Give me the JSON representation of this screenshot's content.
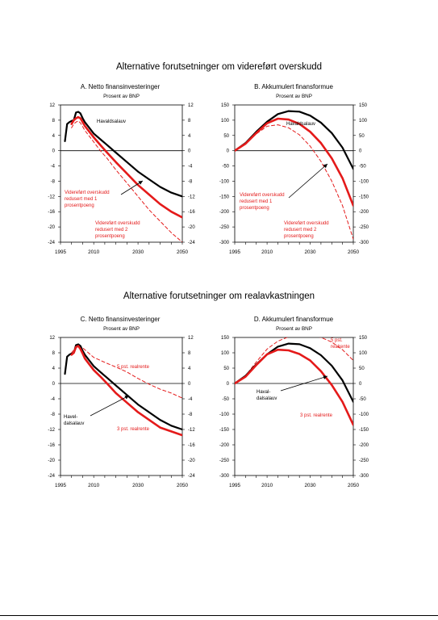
{
  "sections": [
    {
      "title": "Alternative forutsetninger om videreført overskudd"
    },
    {
      "title": "Alternative forutsetninger om realavkastningen"
    }
  ],
  "colors": {
    "base": "#000000",
    "red": "#e41a1a"
  },
  "chart_data": [
    {
      "id": "A",
      "type": "line",
      "title": "A. Netto finansinvesteringer",
      "ylabel": "Prosent av BNP",
      "xlim": [
        1995,
        2050
      ],
      "ylim": [
        -24,
        12
      ],
      "xticks": [
        "1995",
        "2010",
        "2030",
        "2050"
      ],
      "yticks": [
        "12",
        "8",
        "4",
        "0",
        "-4",
        "-8",
        "-12",
        "-16",
        "-20",
        "-24"
      ],
      "annotations": [
        {
          "text": [
            "Havaldsalauv"
          ],
          "color": "#000000"
        },
        {
          "text": [
            "Videreført overskudd",
            "redusert med 1",
            "prosentpoeng"
          ],
          "color": "#e41a1a"
        },
        {
          "text": [
            "Videreført overskudd",
            "redusert med 2",
            "prosentpoeng"
          ],
          "color": "#e41a1a"
        }
      ],
      "series": [
        {
          "name": "Havaldsalauv",
          "color": "#000000",
          "dash": "none",
          "width": 2.2,
          "x": [
            1997,
            1998,
            1999,
            2000,
            2001,
            2002,
            2003,
            2004,
            2005,
            2006,
            2008,
            2010,
            2013,
            2016,
            2020,
            2025,
            2030,
            2035,
            2040,
            2045,
            2050
          ],
          "y": [
            2.5,
            7.0,
            7.5,
            7.8,
            8.0,
            10.0,
            10.2,
            9.8,
            8.5,
            7.5,
            6.0,
            4.5,
            3.0,
            1.5,
            -0.5,
            -3.0,
            -5.5,
            -7.5,
            -9.5,
            -11.0,
            -12.0
          ]
        },
        {
          "name": "Videreført overskudd redusert med 1 prosentpoeng",
          "color": "#e41a1a",
          "dash": "none",
          "width": 2.6,
          "x": [
            2000,
            2001,
            2002,
            2003,
            2004,
            2005,
            2006,
            2008,
            2010,
            2013,
            2016,
            2020,
            2025,
            2030,
            2035,
            2040,
            2045,
            2050
          ],
          "y": [
            7.0,
            8.0,
            8.5,
            8.8,
            8.5,
            7.5,
            6.5,
            5.0,
            3.5,
            1.5,
            -0.5,
            -3.0,
            -6.0,
            -9.0,
            -11.5,
            -14.0,
            -16.0,
            -17.5
          ]
        },
        {
          "name": "Videreført overskudd redusert med 2 prosentpoeng",
          "color": "#e41a1a",
          "dash": "4,3",
          "width": 1.0,
          "x": [
            2000,
            2001,
            2002,
            2003,
            2004,
            2005,
            2006,
            2008,
            2010,
            2013,
            2016,
            2020,
            2025,
            2030,
            2035,
            2040,
            2045,
            2050
          ],
          "y": [
            6.0,
            7.0,
            7.5,
            7.8,
            7.3,
            6.3,
            5.3,
            3.8,
            2.3,
            0.0,
            -2.0,
            -5.0,
            -8.5,
            -12.0,
            -15.5,
            -18.5,
            -21.5,
            -24.0
          ]
        }
      ]
    },
    {
      "id": "B",
      "type": "line",
      "title": "B. Akkumulert finansformue",
      "ylabel": "Prosent av BNP",
      "xlim": [
        1995,
        2050
      ],
      "ylim": [
        -300,
        150
      ],
      "xticks": [
        "1995",
        "2010",
        "2030",
        "2050"
      ],
      "yticks": [
        "150",
        "100",
        "50",
        "0",
        "-50",
        "-100",
        "-150",
        "-200",
        "-250",
        "-300"
      ],
      "annotations": [
        {
          "text": [
            "Havaldsalauv"
          ],
          "color": "#000000"
        },
        {
          "text": [
            "Videreført overskudd",
            "redusert med 1",
            "prosentpoeng"
          ],
          "color": "#e41a1a"
        },
        {
          "text": [
            "Videreført overskudd",
            "redusert med 2",
            "prosentpoeng"
          ],
          "color": "#e41a1a"
        }
      ],
      "series": [
        {
          "name": "Havaldsalauv",
          "color": "#000000",
          "dash": "none",
          "width": 2.2,
          "x": [
            1995,
            2000,
            2005,
            2010,
            2015,
            2020,
            2025,
            2030,
            2035,
            2040,
            2045,
            2050
          ],
          "y": [
            0,
            25,
            62,
            95,
            120,
            130,
            128,
            115,
            92,
            58,
            10,
            -60
          ]
        },
        {
          "name": "Videreført overskudd redusert med 1 prosentpoeng",
          "color": "#e41a1a",
          "dash": "none",
          "width": 2.6,
          "x": [
            1995,
            2000,
            2005,
            2010,
            2015,
            2020,
            2025,
            2030,
            2035,
            2040,
            2045,
            2050
          ],
          "y": [
            0,
            23,
            58,
            90,
            105,
            102,
            88,
            62,
            25,
            -25,
            -90,
            -180
          ]
        },
        {
          "name": "Videreført overskudd redusert med 2 prosentpoeng",
          "color": "#e41a1a",
          "dash": "4,3",
          "width": 1.0,
          "x": [
            1995,
            2000,
            2005,
            2010,
            2015,
            2020,
            2025,
            2030,
            2035,
            2040,
            2045,
            2050
          ],
          "y": [
            0,
            22,
            55,
            80,
            85,
            75,
            52,
            15,
            -35,
            -100,
            -180,
            -290
          ]
        }
      ]
    },
    {
      "id": "C",
      "type": "line",
      "title": "C. Netto finansinvesteringer",
      "ylabel": "Prosent av BNP",
      "xlim": [
        1995,
        2050
      ],
      "ylim": [
        -24,
        12
      ],
      "xticks": [
        "1995",
        "2010",
        "2030",
        "2050"
      ],
      "yticks": [
        "12",
        "8",
        "4",
        "0",
        "-4",
        "-8",
        "-12",
        "-16",
        "-20",
        "-24"
      ],
      "annotations": [
        {
          "text": [
            "5 pst. realrente"
          ],
          "color": "#e41a1a"
        },
        {
          "text": [
            "Havel-",
            "dalsalauv"
          ],
          "color": "#000000"
        },
        {
          "text": [
            "3 pst. realrente"
          ],
          "color": "#e41a1a"
        }
      ],
      "series": [
        {
          "name": "5 pst. realrente",
          "color": "#e41a1a",
          "dash": "4,3",
          "width": 1.0,
          "x": [
            1997,
            1998,
            1999,
            2000,
            2002,
            2003,
            2004,
            2006,
            2008,
            2010,
            2015,
            2020,
            2025,
            2030,
            2035,
            2040,
            2045,
            2050
          ],
          "y": [
            2.5,
            7.0,
            7.5,
            8.0,
            9.5,
            10.0,
            9.8,
            8.8,
            7.8,
            6.8,
            5.5,
            4.3,
            3.0,
            1.3,
            -0.2,
            -1.5,
            -2.5,
            -3.8
          ]
        },
        {
          "name": "Havaldsalauv",
          "color": "#000000",
          "dash": "none",
          "width": 2.2,
          "x": [
            1997,
            1998,
            1999,
            2000,
            2001,
            2002,
            2003,
            2004,
            2005,
            2006,
            2008,
            2010,
            2013,
            2016,
            2020,
            2025,
            2030,
            2035,
            2040,
            2045,
            2050
          ],
          "y": [
            2.5,
            7.0,
            7.5,
            7.8,
            8.0,
            10.0,
            10.2,
            9.8,
            8.5,
            7.5,
            6.0,
            4.5,
            3.0,
            1.5,
            -0.5,
            -3.0,
            -5.5,
            -7.5,
            -9.5,
            -11.0,
            -12.0
          ]
        },
        {
          "name": "3 pst. realrente",
          "color": "#e41a1a",
          "dash": "none",
          "width": 2.6,
          "x": [
            2000,
            2001,
            2002,
            2003,
            2004,
            2005,
            2006,
            2008,
            2010,
            2013,
            2016,
            2020,
            2025,
            2030,
            2035,
            2040,
            2045,
            2050
          ],
          "y": [
            7.5,
            8.0,
            9.5,
            9.8,
            9.0,
            7.8,
            6.5,
            5.0,
            3.5,
            1.8,
            0.0,
            -2.5,
            -5.0,
            -7.5,
            -9.5,
            -11.5,
            -12.5,
            -13.5
          ]
        }
      ]
    },
    {
      "id": "D",
      "type": "line",
      "title": "D. Akkumulert finansformue",
      "ylabel": "Prosent av BNP",
      "xlim": [
        1995,
        2050
      ],
      "ylim": [
        -300,
        150
      ],
      "xticks": [
        "1995",
        "2010",
        "2030",
        "2050"
      ],
      "yticks": [
        "150",
        "100",
        "50",
        "0",
        "-50",
        "-100",
        "-150",
        "-200",
        "-250",
        "-300"
      ],
      "annotations": [
        {
          "text": [
            "5 pst.",
            "realrente"
          ],
          "color": "#e41a1a"
        },
        {
          "text": [
            "Haval-",
            "dalsalauv"
          ],
          "color": "#000000"
        },
        {
          "text": [
            "3 pst. realrente"
          ],
          "color": "#e41a1a"
        }
      ],
      "series": [
        {
          "name": "5 pst. realrente",
          "color": "#e41a1a",
          "dash": "4,3",
          "width": 1.0,
          "x": [
            1995,
            2000,
            2005,
            2010,
            2015,
            2020,
            2025,
            2030,
            2035,
            2040,
            2045,
            2050
          ],
          "y": [
            0,
            25,
            70,
            112,
            138,
            152,
            158,
            158,
            150,
            135,
            110,
            75
          ]
        },
        {
          "name": "Havaldsalauv",
          "color": "#000000",
          "dash": "none",
          "width": 2.2,
          "x": [
            1995,
            2000,
            2005,
            2010,
            2015,
            2020,
            2025,
            2030,
            2035,
            2040,
            2045,
            2050
          ],
          "y": [
            0,
            25,
            62,
            95,
            120,
            130,
            128,
            115,
            92,
            58,
            10,
            -60
          ]
        },
        {
          "name": "3 pst. realrente",
          "color": "#e41a1a",
          "dash": "none",
          "width": 2.6,
          "x": [
            1995,
            2000,
            2005,
            2010,
            2015,
            2020,
            2025,
            2030,
            2035,
            2040,
            2045,
            2050
          ],
          "y": [
            0,
            22,
            60,
            95,
            110,
            108,
            96,
            75,
            40,
            -5,
            -60,
            -135
          ]
        }
      ]
    }
  ]
}
